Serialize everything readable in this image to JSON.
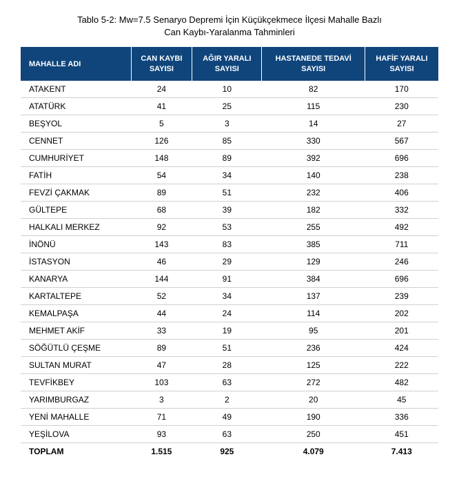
{
  "title_line1": "Tablo 5-2: Mw=7.5 Senaryo Depremi İçin Küçükçekmece İlçesi Mahalle Bazlı",
  "title_line2": "Can Kaybı-Yaralanma Tahminleri",
  "table": {
    "columns": [
      "MAHALLE ADI",
      "CAN KAYBI SAYISI",
      "AĞIR YARALI SAYISI",
      "HASTANEDE TEDAVİ SAYISI",
      "HAFİF YARALI SAYISI"
    ],
    "rows": [
      [
        "ATAKENT",
        "24",
        "10",
        "82",
        "170"
      ],
      [
        "ATATÜRK",
        "41",
        "25",
        "115",
        "230"
      ],
      [
        "BEŞYOL",
        "5",
        "3",
        "14",
        "27"
      ],
      [
        "CENNET",
        "126",
        "85",
        "330",
        "567"
      ],
      [
        "CUMHURİYET",
        "148",
        "89",
        "392",
        "696"
      ],
      [
        "FATİH",
        "54",
        "34",
        "140",
        "238"
      ],
      [
        "FEVZİ ÇAKMAK",
        "89",
        "51",
        "232",
        "406"
      ],
      [
        "GÜLTEPE",
        "68",
        "39",
        "182",
        "332"
      ],
      [
        "HALKALI MERKEZ",
        "92",
        "53",
        "255",
        "492"
      ],
      [
        "İNÖNÜ",
        "143",
        "83",
        "385",
        "711"
      ],
      [
        "İSTASYON",
        "46",
        "29",
        "129",
        "246"
      ],
      [
        "KANARYA",
        "144",
        "91",
        "384",
        "696"
      ],
      [
        "KARTALTEPE",
        "52",
        "34",
        "137",
        "239"
      ],
      [
        "KEMALPAŞA",
        "44",
        "24",
        "114",
        "202"
      ],
      [
        "MEHMET AKİF",
        "33",
        "19",
        "95",
        "201"
      ],
      [
        "SÖĞÜTLÜ ÇEŞME",
        "89",
        "51",
        "236",
        "424"
      ],
      [
        "SULTAN MURAT",
        "47",
        "28",
        "125",
        "222"
      ],
      [
        "TEVFİKBEY",
        "103",
        "63",
        "272",
        "482"
      ],
      [
        "YARIMBURGAZ",
        "3",
        "2",
        "20",
        "45"
      ],
      [
        "YENİ MAHALLE",
        "71",
        "49",
        "190",
        "336"
      ],
      [
        "YEŞİLOVA",
        "93",
        "63",
        "250",
        "451"
      ]
    ],
    "total": [
      "TOPLAM",
      "1.515",
      "925",
      "4.079",
      "7.413"
    ],
    "header_bg": "#10457c",
    "header_fg": "#ffffff",
    "row_border": "#d0d0d0",
    "text_color": "#000000"
  }
}
